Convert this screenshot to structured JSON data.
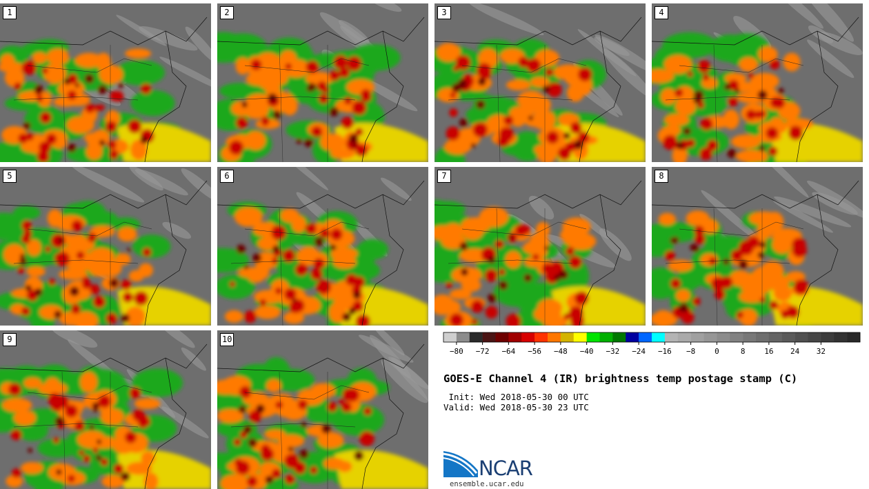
{
  "panels": [
    {
      "label": "1"
    },
    {
      "label": "2"
    },
    {
      "label": "3"
    },
    {
      "label": "4"
    },
    {
      "label": "5"
    },
    {
      "label": "6"
    },
    {
      "label": "7"
    },
    {
      "label": "8"
    },
    {
      "label": "9"
    },
    {
      "label": "10"
    }
  ],
  "colorbar": {
    "tick_labels": [
      "−80",
      "−72",
      "−64",
      "−56",
      "−48",
      "−40",
      "−32",
      "−24",
      "−16",
      "−8",
      "0",
      "8",
      "16",
      "24",
      "32"
    ],
    "colors": [
      "#cfcfcf",
      "#8c8c8c",
      "#2a2a2a",
      "#4a1414",
      "#6e0000",
      "#a00000",
      "#d80000",
      "#ff3300",
      "#ff7700",
      "#d4b400",
      "#ffff00",
      "#00e400",
      "#00b000",
      "#007800",
      "#0000a0",
      "#0066ff",
      "#00ffff",
      "#b4b4b4",
      "#aaaaaa",
      "#a0a0a0",
      "#969696",
      "#8c8c8c",
      "#828282",
      "#787878",
      "#6e6e6e",
      "#646464",
      "#5a5a5a",
      "#505050",
      "#464646",
      "#3c3c3c",
      "#323232",
      "#282828"
    ]
  },
  "title": "GOES-E Channel 4 (IR) brightness temp postage stamp (C)",
  "init": " Init: Wed 2018-05-30 00 UTC",
  "valid": "Valid: Wed 2018-05-30 23 UTC",
  "logo": {
    "text": "NCAR",
    "website": "ensemble.ucar.edu"
  }
}
